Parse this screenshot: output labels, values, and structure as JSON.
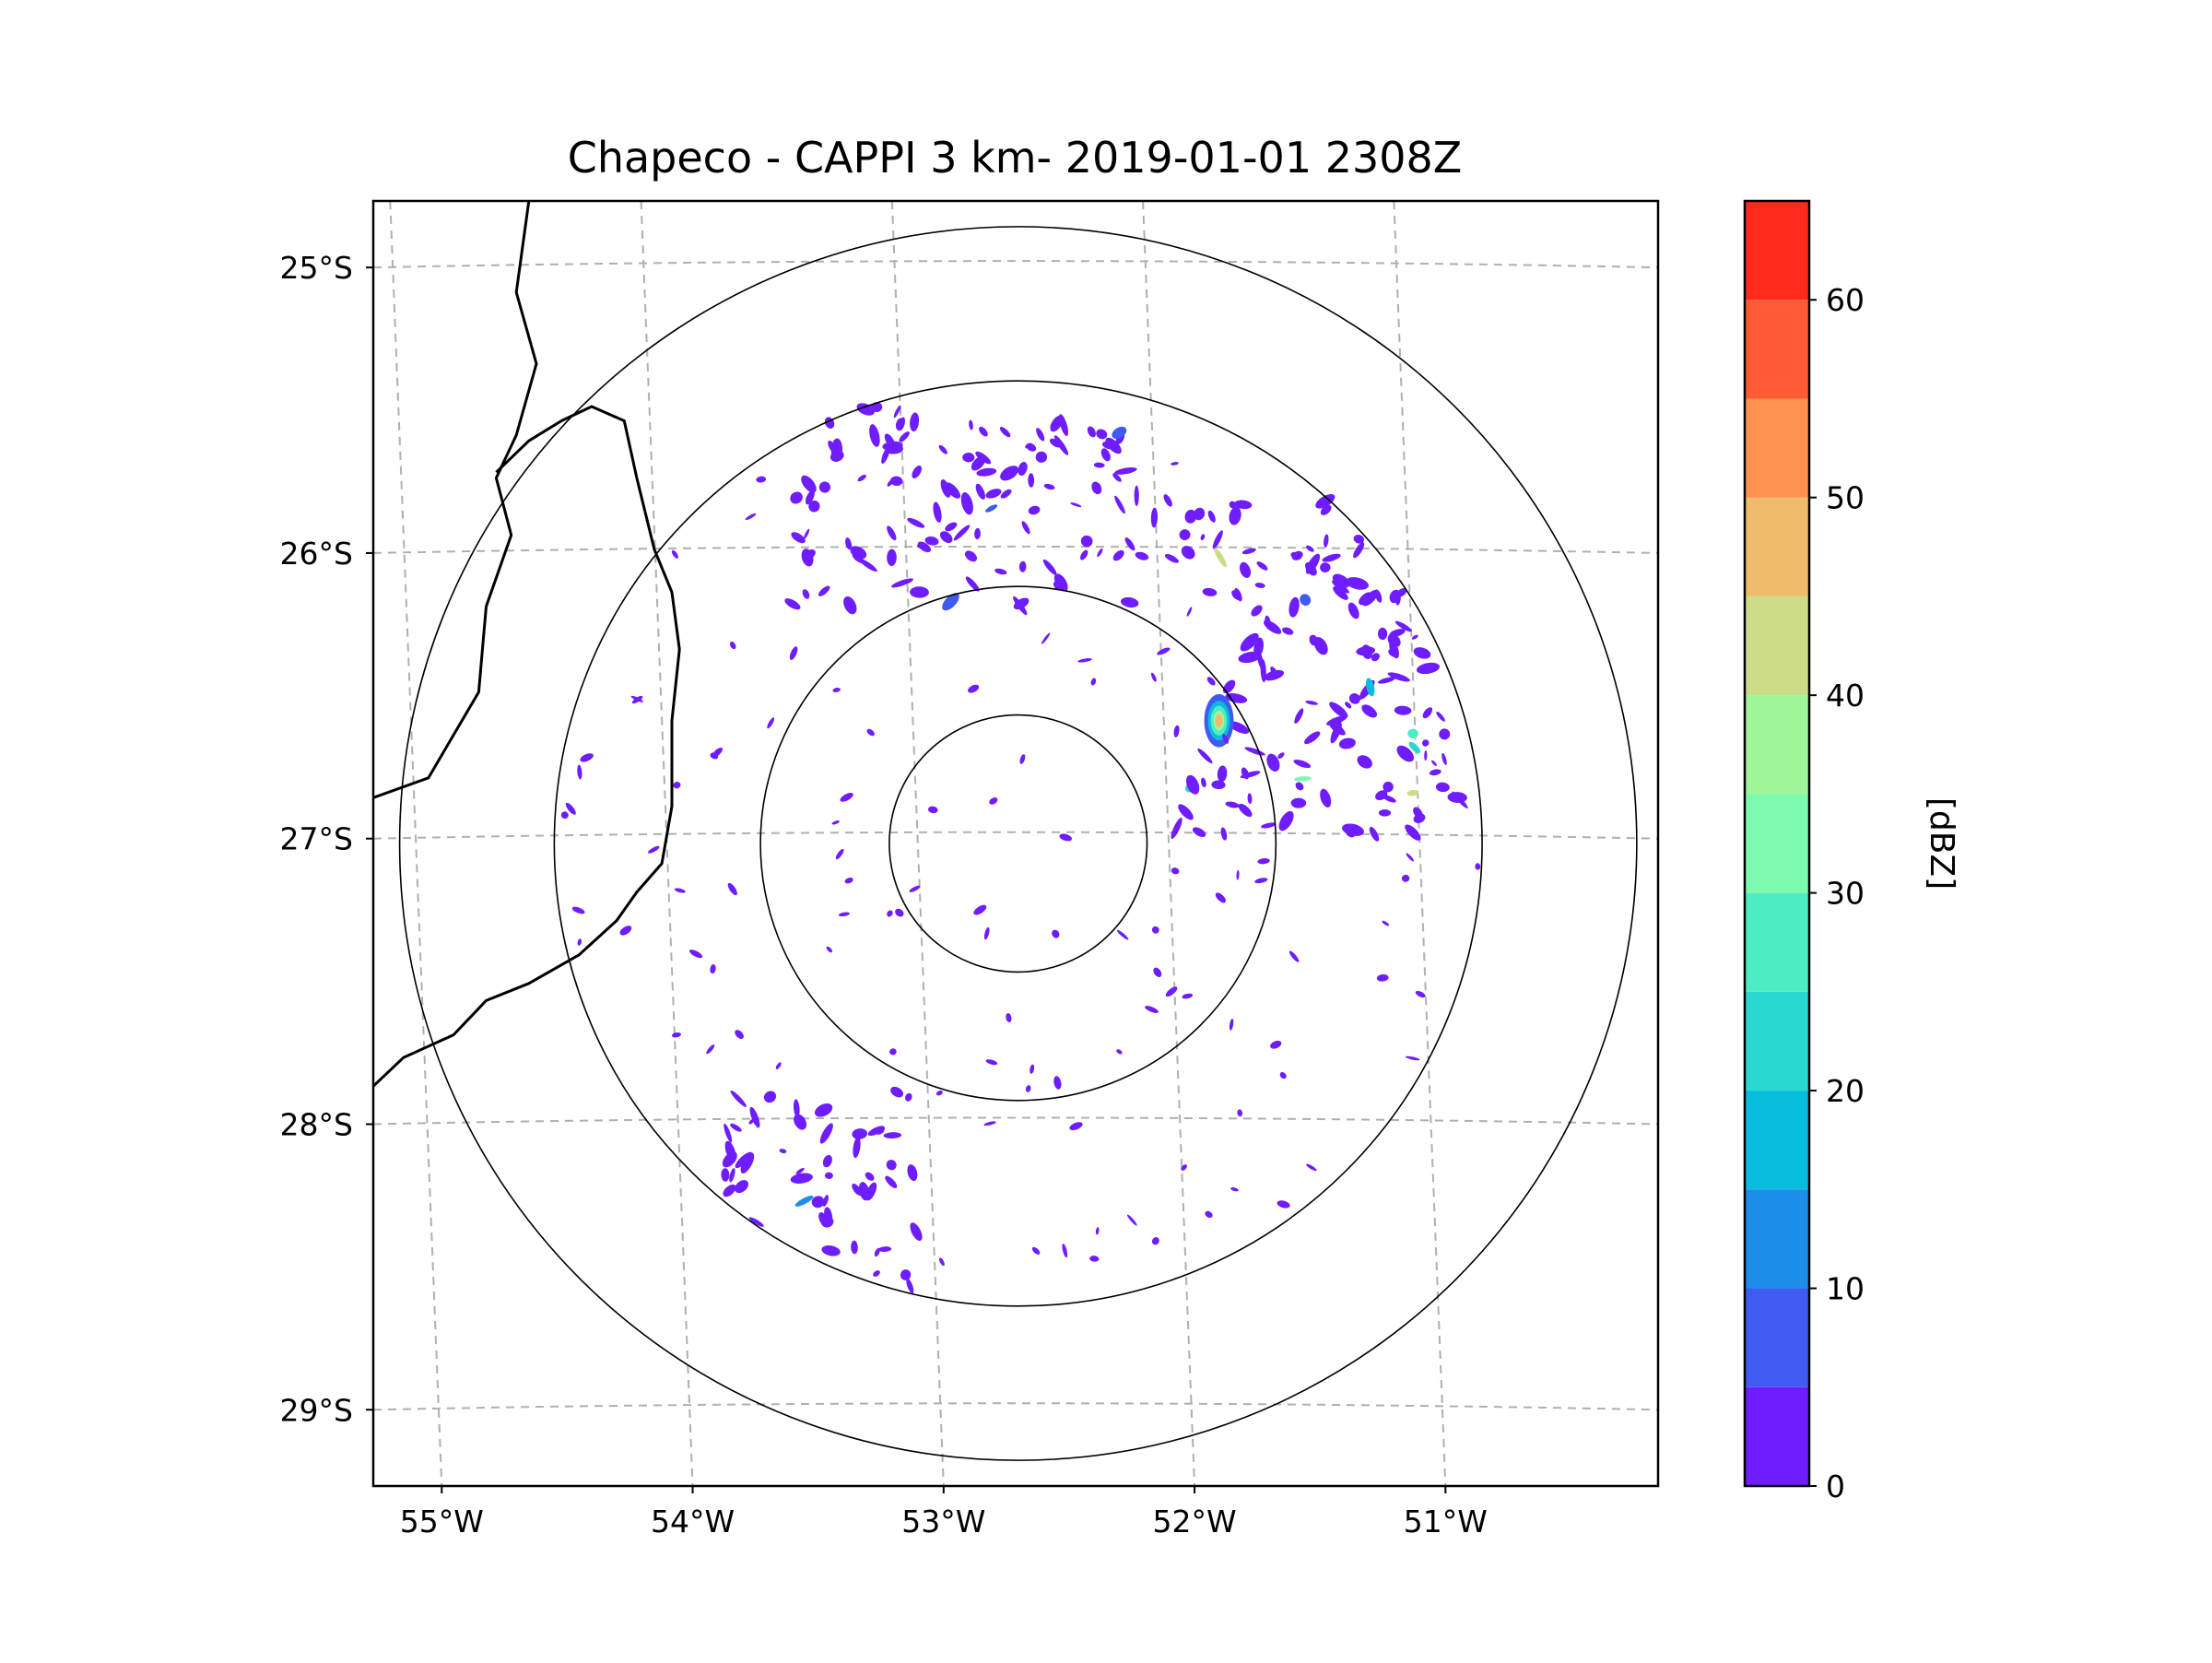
{
  "chart_data": {
    "type": "heatmap",
    "subtype": "radar-cappi-map",
    "title": "Chapeco - CAPPI 3 km- 2019-01-01 2308Z",
    "radar_site": "Chapeco",
    "product": "CAPPI 3 km",
    "datetime": "2019-01-01 2308Z",
    "radar_center": {
      "lon": -52.6,
      "lat": -27.03
    },
    "range_rings_deg_lat": [
      0.45,
      0.9,
      1.62,
      2.16
    ],
    "xlim": [
      -55.17,
      -50.05
    ],
    "ylim": [
      -29.28,
      -24.78
    ],
    "x_ticks": [
      {
        "value": -55,
        "label": "55°W"
      },
      {
        "value": -54,
        "label": "54°W"
      },
      {
        "value": -53,
        "label": "53°W"
      },
      {
        "value": -52,
        "label": "52°W"
      },
      {
        "value": -51,
        "label": "51°W"
      }
    ],
    "y_ticks": [
      {
        "value": -25,
        "label": "25°S"
      },
      {
        "value": -26,
        "label": "26°S"
      },
      {
        "value": -27,
        "label": "27°S"
      },
      {
        "value": -28,
        "label": "28°S"
      },
      {
        "value": -29,
        "label": "29°S"
      }
    ],
    "gridlines": true,
    "colorbar": {
      "label": "[dBZ]",
      "min": 0,
      "max": 65,
      "bounds": [
        0,
        5,
        10,
        15,
        20,
        25,
        30,
        35,
        40,
        45,
        50,
        55,
        60,
        65
      ],
      "colors": [
        "#6f1cff",
        "#3f5bf2",
        "#1c8ee8",
        "#07bcdd",
        "#2ad8d2",
        "#4dedc4",
        "#7cfbae",
        "#9ff59a",
        "#cbdd86",
        "#f0bc6c",
        "#ff9050",
        "#ff5a36",
        "#ff2a1c"
      ],
      "ticks": [
        {
          "value": 0,
          "label": "0"
        },
        {
          "value": 10,
          "label": "10"
        },
        {
          "value": 20,
          "label": "20"
        },
        {
          "value": 30,
          "label": "30"
        },
        {
          "value": 40,
          "label": "40"
        },
        {
          "value": 50,
          "label": "50"
        },
        {
          "value": 60,
          "label": "60"
        }
      ]
    },
    "echo_regions": [
      {
        "name": "northern-band",
        "lon": [
          -53.5,
          -52.0
        ],
        "lat": [
          -26.2,
          -25.5
        ],
        "dbz_range": [
          0,
          10
        ]
      },
      {
        "name": "northeast-cluster",
        "lon": [
          -52.0,
          -50.8
        ],
        "lat": [
          -27.0,
          -25.8
        ],
        "dbz_range": [
          0,
          45
        ]
      },
      {
        "name": "peak-cell",
        "lon": -51.8,
        "lat": -26.6,
        "dbz": 45
      },
      {
        "name": "southwest-band",
        "lon": [
          -53.8,
          -53.0
        ],
        "lat": [
          -28.6,
          -27.9
        ],
        "dbz_range": [
          0,
          15
        ]
      },
      {
        "name": "scattered-clutter",
        "lon": [
          -54.6,
          -50.6
        ],
        "lat": [
          -28.6,
          -25.5
        ],
        "dbz_range": [
          0,
          5
        ]
      }
    ],
    "borders_lonlat": [
      [
        [
          -54.55,
          -24.78
        ],
        [
          -54.6,
          -25.1
        ],
        [
          -54.52,
          -25.35
        ],
        [
          -54.6,
          -25.6
        ],
        [
          -54.68,
          -25.75
        ],
        [
          -54.62,
          -25.95
        ],
        [
          -54.72,
          -26.2
        ],
        [
          -54.75,
          -26.5
        ],
        [
          -54.85,
          -26.65
        ],
        [
          -54.95,
          -26.8
        ],
        [
          -55.17,
          -26.87
        ]
      ],
      [
        [
          -54.68,
          -25.73
        ],
        [
          -54.55,
          -25.62
        ],
        [
          -54.42,
          -25.55
        ],
        [
          -54.3,
          -25.5
        ],
        [
          -54.17,
          -25.55
        ],
        [
          -54.12,
          -25.75
        ],
        [
          -54.05,
          -26.0
        ],
        [
          -53.98,
          -26.15
        ],
        [
          -53.95,
          -26.35
        ],
        [
          -53.98,
          -26.6
        ],
        [
          -53.98,
          -26.9
        ],
        [
          -54.02,
          -27.1
        ],
        [
          -54.12,
          -27.2
        ],
        [
          -54.2,
          -27.3
        ],
        [
          -54.35,
          -27.42
        ],
        [
          -54.55,
          -27.52
        ],
        [
          -54.72,
          -27.58
        ],
        [
          -54.85,
          -27.7
        ],
        [
          -55.05,
          -27.78
        ],
        [
          -55.17,
          -27.88
        ]
      ]
    ]
  }
}
